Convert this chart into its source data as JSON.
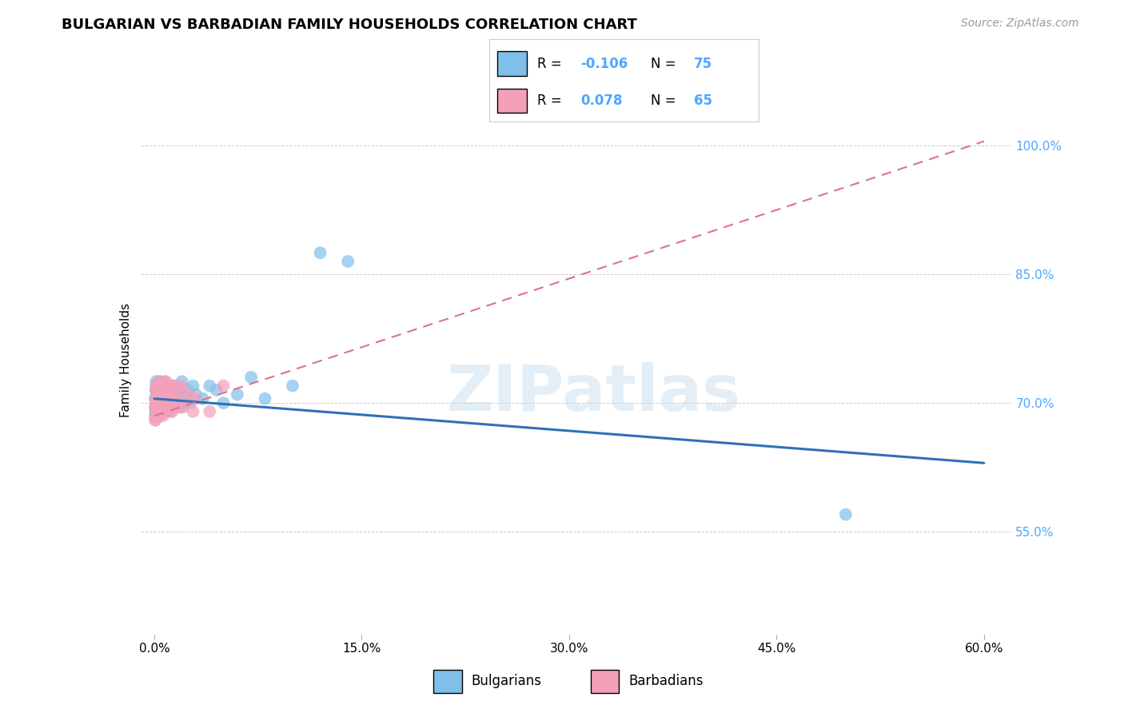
{
  "title": "BULGARIAN VS BARBADIAN FAMILY HOUSEHOLDS CORRELATION CHART",
  "source": "Source: ZipAtlas.com",
  "ylabel": "Family Households",
  "x_tick_labels": [
    "0.0%",
    "15.0%",
    "30.0%",
    "45.0%",
    "60.0%"
  ],
  "x_ticks": [
    0.0,
    15.0,
    30.0,
    45.0,
    60.0
  ],
  "y_tick_labels": [
    "55.0%",
    "70.0%",
    "85.0%",
    "100.0%"
  ],
  "y_ticks": [
    55.0,
    70.0,
    85.0,
    100.0
  ],
  "xlim": [
    -1.0,
    62.0
  ],
  "ylim": [
    43.0,
    107.0
  ],
  "legend_r_bulg": "-0.106",
  "legend_r_barb": "0.078",
  "legend_n_bulg": "75",
  "legend_n_barb": "65",
  "blue_color": "#7fbfea",
  "pink_color": "#f4a0b8",
  "blue_line_color": "#3070b8",
  "pink_line_color": "#e07090",
  "watermark_text": "ZIPatlas",
  "bg_color": "#ffffff",
  "grid_color": "#cccccc",
  "blue_line_y0": 70.5,
  "blue_line_y1": 63.0,
  "pink_line_y0": 68.5,
  "pink_line_y1": 100.5,
  "bulgarians_x": [
    0.05,
    0.08,
    0.1,
    0.12,
    0.15,
    0.18,
    0.2,
    0.22,
    0.25,
    0.28,
    0.3,
    0.32,
    0.35,
    0.38,
    0.4,
    0.42,
    0.45,
    0.48,
    0.5,
    0.52,
    0.55,
    0.58,
    0.6,
    0.65,
    0.68,
    0.7,
    0.72,
    0.75,
    0.78,
    0.8,
    0.85,
    0.88,
    0.9,
    0.92,
    0.95,
    0.98,
    1.0,
    1.05,
    1.1,
    1.15,
    1.2,
    1.25,
    1.3,
    1.4,
    1.5,
    1.6,
    1.7,
    1.8,
    1.9,
    2.0,
    2.2,
    2.4,
    2.6,
    2.8,
    3.0,
    3.5,
    4.0,
    4.5,
    5.0,
    6.0,
    7.0,
    8.0,
    10.0,
    12.0,
    0.06,
    0.09,
    0.13,
    0.16,
    0.19,
    0.23,
    0.27,
    0.33,
    0.37,
    50.0,
    14.0
  ],
  "bulgarians_y": [
    70.5,
    69.0,
    71.5,
    68.5,
    72.0,
    70.0,
    69.5,
    71.0,
    70.5,
    72.0,
    69.0,
    70.5,
    71.5,
    70.0,
    69.5,
    72.5,
    70.0,
    71.0,
    69.5,
    70.5,
    71.5,
    69.5,
    70.5,
    72.0,
    70.0,
    69.0,
    71.0,
    70.5,
    69.5,
    71.5,
    70.0,
    72.0,
    69.5,
    71.0,
    70.5,
    69.0,
    71.5,
    70.0,
    72.0,
    69.5,
    71.0,
    70.5,
    69.5,
    72.0,
    70.5,
    71.5,
    70.0,
    71.0,
    69.5,
    72.5,
    70.5,
    71.5,
    70.0,
    72.0,
    71.0,
    70.5,
    72.0,
    71.5,
    70.0,
    71.0,
    73.0,
    70.5,
    72.0,
    87.5,
    68.5,
    69.5,
    72.5,
    71.0,
    70.5,
    69.0,
    71.5,
    70.0,
    72.0,
    57.0,
    86.5
  ],
  "barbadians_x": [
    0.05,
    0.08,
    0.1,
    0.12,
    0.15,
    0.18,
    0.2,
    0.22,
    0.25,
    0.28,
    0.3,
    0.32,
    0.35,
    0.38,
    0.4,
    0.42,
    0.45,
    0.48,
    0.5,
    0.55,
    0.6,
    0.65,
    0.7,
    0.75,
    0.8,
    0.85,
    0.9,
    0.95,
    1.0,
    1.1,
    1.2,
    1.3,
    1.5,
    1.7,
    1.9,
    2.1,
    2.5,
    3.0,
    4.0,
    5.0,
    0.06,
    0.09,
    0.13,
    0.16,
    0.19,
    0.23,
    0.27,
    0.33,
    0.37,
    0.43,
    0.5,
    0.58,
    0.68,
    0.78,
    0.88,
    0.98,
    1.08,
    1.18,
    1.35,
    1.55,
    1.75,
    2.0,
    2.3,
    2.8,
    0.62
  ],
  "barbadians_y": [
    69.5,
    68.0,
    70.5,
    71.5,
    69.0,
    72.0,
    70.5,
    68.5,
    71.0,
    70.0,
    72.5,
    69.5,
    71.5,
    70.0,
    68.5,
    72.0,
    70.5,
    69.0,
    71.5,
    70.0,
    72.0,
    69.5,
    71.0,
    70.5,
    69.0,
    72.5,
    70.0,
    71.5,
    69.5,
    72.0,
    70.5,
    69.0,
    71.5,
    70.0,
    72.0,
    69.5,
    71.0,
    70.5,
    69.0,
    72.0,
    68.0,
    70.0,
    72.0,
    69.5,
    71.5,
    70.0,
    68.5,
    72.0,
    70.5,
    69.0,
    71.5,
    70.0,
    69.5,
    72.5,
    70.0,
    71.0,
    70.5,
    69.0,
    72.0,
    70.5,
    69.5,
    71.5,
    70.0,
    69.0,
    68.5
  ],
  "title_fontsize": 13,
  "source_fontsize": 10,
  "tick_fontsize": 11,
  "ylabel_fontsize": 11
}
